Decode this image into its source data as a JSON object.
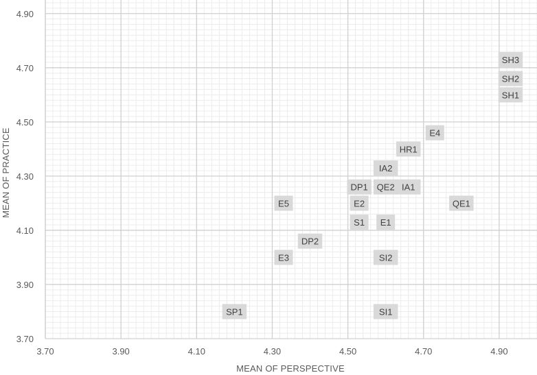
{
  "chart_data": {
    "type": "scatter",
    "title": "",
    "xlabel": "MEAN OF PERSPECTIVE",
    "ylabel": "MEAN OF PRACTICE",
    "xlim": [
      3.7,
      5.0
    ],
    "ylim": [
      3.7,
      4.95
    ],
    "xticks": [
      "3.70",
      "3.90",
      "4.10",
      "4.30",
      "4.50",
      "4.70",
      "4.90"
    ],
    "yticks": [
      "3.70",
      "3.90",
      "4.10",
      "4.30",
      "4.50",
      "4.70",
      "4.90"
    ],
    "grid": true,
    "label_background": "#d9d9d9",
    "points": [
      {
        "label": "SH3",
        "x": 4.93,
        "y": 4.73
      },
      {
        "label": "SH2",
        "x": 4.93,
        "y": 4.66
      },
      {
        "label": "SH1",
        "x": 4.93,
        "y": 4.6
      },
      {
        "label": "E4",
        "x": 4.73,
        "y": 4.46
      },
      {
        "label": "HR1",
        "x": 4.66,
        "y": 4.4
      },
      {
        "label": "IA2",
        "x": 4.6,
        "y": 4.33
      },
      {
        "label": "DP1",
        "x": 4.53,
        "y": 4.26
      },
      {
        "label": "QE2",
        "x": 4.6,
        "y": 4.26
      },
      {
        "label": "IA1",
        "x": 4.66,
        "y": 4.26
      },
      {
        "label": "E5",
        "x": 4.33,
        "y": 4.2
      },
      {
        "label": "E2",
        "x": 4.53,
        "y": 4.2
      },
      {
        "label": "QE1",
        "x": 4.8,
        "y": 4.2
      },
      {
        "label": "S1",
        "x": 4.53,
        "y": 4.13
      },
      {
        "label": "E1",
        "x": 4.6,
        "y": 4.13
      },
      {
        "label": "DP2",
        "x": 4.4,
        "y": 4.06
      },
      {
        "label": "E3",
        "x": 4.33,
        "y": 4.0
      },
      {
        "label": "SI2",
        "x": 4.6,
        "y": 4.0
      },
      {
        "label": "SP1",
        "x": 4.2,
        "y": 3.8
      },
      {
        "label": "SI1",
        "x": 4.6,
        "y": 3.8
      }
    ]
  }
}
